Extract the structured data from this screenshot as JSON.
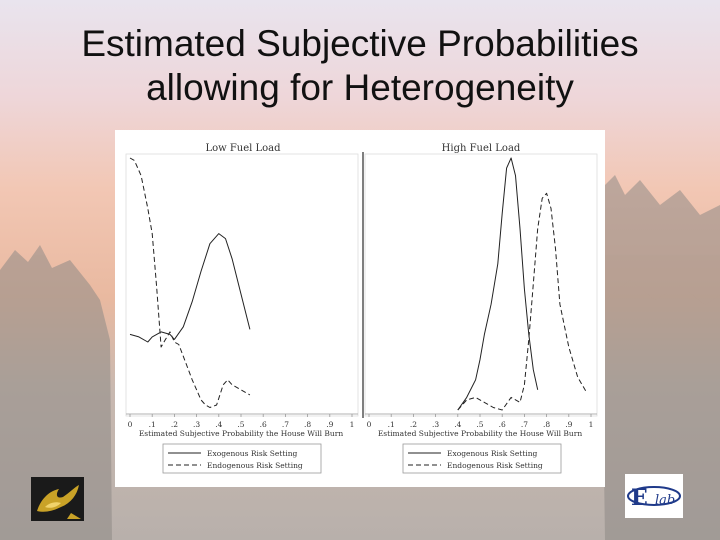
{
  "slide": {
    "title_line1": "Estimated Subjective Probabilities",
    "title_line2": "allowing for Heterogeneity"
  },
  "chart_data": [
    {
      "type": "line",
      "title": "Low Fuel Load",
      "xlabel": "Estimated Subjective Probability the House Will Burn",
      "xticks": [
        "0",
        ".1",
        ".2",
        ".3",
        ".4",
        ".5",
        ".6",
        ".7",
        ".8",
        ".9",
        "1"
      ],
      "xlim": [
        0,
        1
      ],
      "legend_placement": "bottom",
      "series": [
        {
          "name": "Exogenous Risk Setting",
          "style": "solid",
          "x": [
            0.0,
            0.04,
            0.08,
            0.1,
            0.14,
            0.18,
            0.2,
            0.24,
            0.28,
            0.32,
            0.36,
            0.4,
            0.43,
            0.46,
            0.5,
            0.54
          ],
          "y": [
            0.3,
            0.29,
            0.27,
            0.29,
            0.31,
            0.3,
            0.28,
            0.33,
            0.43,
            0.55,
            0.66,
            0.7,
            0.68,
            0.6,
            0.46,
            0.32
          ]
        },
        {
          "name": "Endogenous Risk Setting",
          "style": "dashed",
          "x": [
            0.0,
            0.02,
            0.05,
            0.08,
            0.1,
            0.12,
            0.14,
            0.16,
            0.18,
            0.2,
            0.22,
            0.25,
            0.28,
            0.3,
            0.32,
            0.34,
            0.36,
            0.39,
            0.42,
            0.44,
            0.46,
            0.5,
            0.54
          ],
          "y": [
            1.0,
            0.99,
            0.93,
            0.8,
            0.7,
            0.49,
            0.25,
            0.28,
            0.31,
            0.27,
            0.26,
            0.19,
            0.12,
            0.08,
            0.04,
            0.02,
            0.01,
            0.02,
            0.1,
            0.12,
            0.1,
            0.08,
            0.06
          ]
        }
      ]
    },
    {
      "type": "line",
      "title": "High Fuel Load",
      "xlabel": "Estimated Subjective Probability the House Will Burn",
      "xticks": [
        "0",
        ".1",
        ".2",
        ".3",
        ".4",
        ".5",
        ".6",
        ".7",
        ".8",
        ".9",
        "1"
      ],
      "xlim": [
        0,
        1
      ],
      "legend_placement": "bottom",
      "series": [
        {
          "name": "Exogenous Risk Setting",
          "style": "solid",
          "x": [
            0.4,
            0.44,
            0.48,
            0.5,
            0.52,
            0.55,
            0.58,
            0.6,
            0.62,
            0.64,
            0.66,
            0.68,
            0.7,
            0.72,
            0.74,
            0.76
          ],
          "y": [
            0.0,
            0.05,
            0.12,
            0.2,
            0.3,
            0.42,
            0.58,
            0.78,
            0.96,
            1.0,
            0.93,
            0.72,
            0.48,
            0.3,
            0.16,
            0.08
          ]
        },
        {
          "name": "Endogenous Risk Setting",
          "style": "dashed",
          "x": [
            0.4,
            0.44,
            0.48,
            0.52,
            0.56,
            0.6,
            0.64,
            0.68,
            0.7,
            0.72,
            0.74,
            0.76,
            0.78,
            0.8,
            0.82,
            0.84,
            0.86,
            0.9,
            0.94,
            0.98
          ],
          "y": [
            0.0,
            0.04,
            0.05,
            0.03,
            0.01,
            0.0,
            0.05,
            0.03,
            0.1,
            0.28,
            0.5,
            0.72,
            0.84,
            0.86,
            0.8,
            0.64,
            0.42,
            0.25,
            0.13,
            0.07
          ]
        }
      ]
    }
  ],
  "logos": {
    "left_icon": "pegasus-logo-icon",
    "right_icon": "exlab-logo-icon",
    "right_text_e": "E",
    "right_text_lab": "lab"
  }
}
